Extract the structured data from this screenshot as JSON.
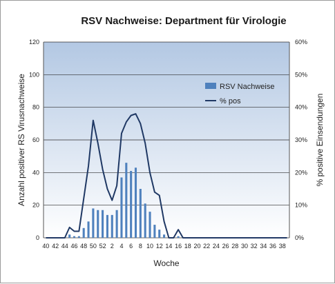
{
  "chart_data": {
    "type": "bar",
    "title": "RSV Nachweise: Department für Virologie",
    "xlabel": "Woche",
    "ylabel_left": "Anzahl positiver RS Virusnachweise",
    "ylabel_right": "% positive Einsendungen",
    "ylim_left": [
      0,
      120
    ],
    "ylim_right": [
      0,
      60
    ],
    "yticks_left": [
      "0",
      "20",
      "40",
      "60",
      "80",
      "100",
      "120"
    ],
    "yticks_right": [
      "0%",
      "10%",
      "20%",
      "30%",
      "40%",
      "50%",
      "60%"
    ],
    "categories": [
      "40",
      "41",
      "42",
      "43",
      "44",
      "45",
      "46",
      "47",
      "48",
      "49",
      "50",
      "51",
      "52",
      "1",
      "2",
      "3",
      "4",
      "5",
      "6",
      "7",
      "8",
      "9",
      "10",
      "11",
      "12",
      "13",
      "14",
      "15",
      "16",
      "17",
      "18",
      "19",
      "20",
      "21",
      "22",
      "23",
      "24",
      "25",
      "26",
      "27",
      "28",
      "29",
      "30",
      "31",
      "32",
      "33",
      "34",
      "35",
      "36",
      "37",
      "38",
      "39"
    ],
    "xtick_labels": [
      "40",
      "42",
      "44",
      "46",
      "48",
      "50",
      "52",
      "2",
      "4",
      "6",
      "8",
      "10",
      "12",
      "14",
      "16",
      "18",
      "20",
      "22",
      "24",
      "26",
      "28",
      "30",
      "32",
      "34",
      "36",
      "38"
    ],
    "grid": true,
    "legend_position": "right-middle",
    "series": [
      {
        "name": "RSV Nachweise",
        "type": "bar",
        "axis": "left",
        "color": "#4f81bd",
        "values": [
          0,
          0,
          0,
          0,
          0,
          2,
          1,
          1,
          6,
          10,
          18,
          17,
          17,
          14,
          14,
          17,
          37,
          46,
          41,
          43,
          30,
          21,
          16,
          8,
          5,
          2,
          0,
          0,
          1,
          0,
          0,
          0,
          0,
          0,
          0,
          0,
          0,
          0,
          0,
          0,
          0,
          0,
          0,
          0,
          0,
          0,
          0,
          0,
          0,
          0,
          0,
          0
        ]
      },
      {
        "name": "% pos",
        "type": "line",
        "axis": "right",
        "color": "#1f3864",
        "values": [
          0,
          0,
          0,
          0,
          0,
          3.2,
          2,
          2,
          12,
          22,
          36,
          29,
          21,
          15,
          11.5,
          16,
          32,
          35.5,
          37.5,
          38,
          35,
          29,
          20,
          14,
          13,
          5,
          0,
          0,
          2.5,
          0,
          0,
          0,
          0,
          0,
          0,
          0,
          0,
          0,
          0,
          0,
          0,
          0,
          0,
          0,
          0,
          0,
          0,
          0,
          0,
          0,
          0,
          0
        ]
      }
    ]
  }
}
